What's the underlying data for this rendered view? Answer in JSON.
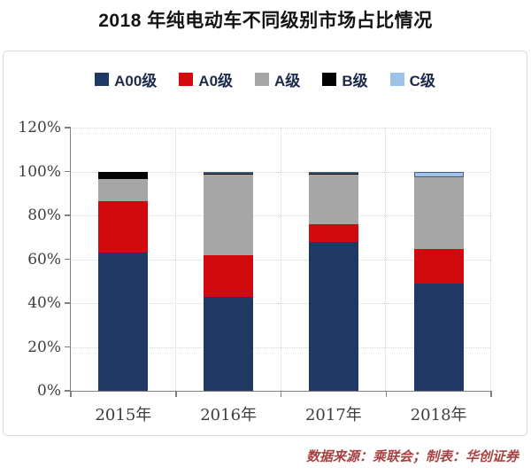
{
  "title": "2018 年纯电动车不同级别市场占比情况",
  "footer": "数据来源：乘联会；制表：华创证券",
  "colors": {
    "panel_border": "#d9d9d9",
    "axis": "#808080",
    "gridline": "#d4d4d4",
    "footer_text": "#a94140",
    "legend_text": "#1d2b4a"
  },
  "chart_data": {
    "type": "bar",
    "stacked": true,
    "title": "2018 年纯电动车不同级别市场占比情况",
    "categories": [
      "2015年",
      "2016年",
      "2017年",
      "2018年"
    ],
    "series": [
      {
        "name": "A00级",
        "color": "#1f3864",
        "values": [
          63,
          43,
          68,
          49
        ]
      },
      {
        "name": "A0级",
        "color": "#d10a10",
        "values": [
          23.5,
          19,
          8,
          15.5
        ]
      },
      {
        "name": "A级",
        "color": "#a6a6a6",
        "values": [
          10,
          36.5,
          22.5,
          33
        ]
      },
      {
        "name": "B级",
        "color": "#000000",
        "values": [
          3.5,
          0.5,
          0.5,
          0
        ]
      },
      {
        "name": "C级",
        "color": "#9dc3e6",
        "border": "#46607a",
        "values": [
          0,
          1,
          1,
          2.5
        ]
      }
    ],
    "xlabel": "",
    "ylabel": "",
    "ylim": [
      0,
      120
    ],
    "ytick_step": 20,
    "ytick_labels": [
      "0%",
      "20%",
      "40%",
      "60%",
      "80%",
      "100%",
      "120%"
    ],
    "grid": true,
    "legend_position": "top"
  }
}
